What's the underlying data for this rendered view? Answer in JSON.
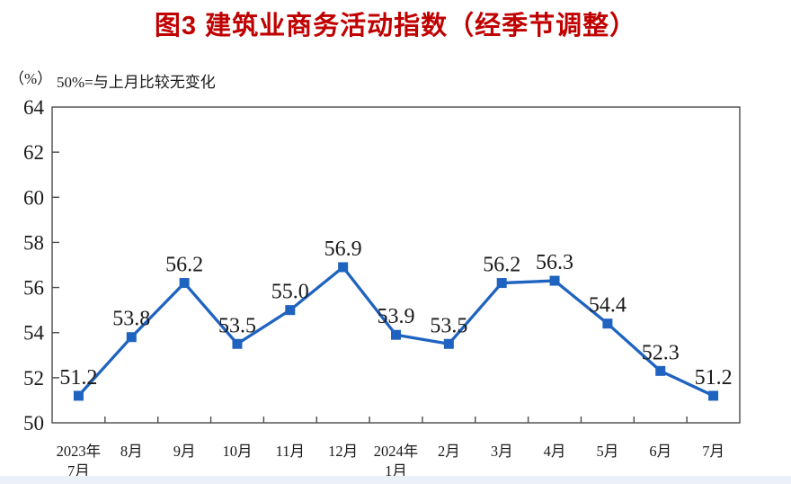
{
  "chart_data": {
    "type": "line",
    "title": "图3  建筑业商务活动指数（经季节调整）",
    "unit_label": "（%）",
    "note": "50%=与上月比较无变化",
    "categories": [
      "2023年\n7月",
      "8月",
      "9月",
      "10月",
      "11月",
      "12月",
      "2024年\n1月",
      "2月",
      "3月",
      "4月",
      "5月",
      "6月",
      "7月"
    ],
    "values": [
      51.2,
      53.8,
      56.2,
      53.5,
      55.0,
      56.9,
      53.9,
      53.5,
      56.2,
      56.3,
      54.4,
      52.3,
      51.2
    ],
    "point_labels": [
      "51.2",
      "53.8",
      "56.2",
      "53.5",
      "55.0",
      "56.9",
      "53.9",
      "53.5",
      "56.2",
      "56.3",
      "54.4",
      "52.3",
      "51.2"
    ],
    "yticks": [
      "50",
      "52",
      "54",
      "56",
      "58",
      "60",
      "62",
      "64"
    ],
    "ylim": [
      50,
      64
    ],
    "grid": false,
    "legend": "none",
    "marker": "square",
    "colors": {
      "line": "#1f63c0",
      "marker": "#1f63c0",
      "title": "#c00000",
      "axis": "#4a4a4a",
      "text": "#1a1a1a",
      "bottom_strip": "#ecf1f9"
    }
  }
}
